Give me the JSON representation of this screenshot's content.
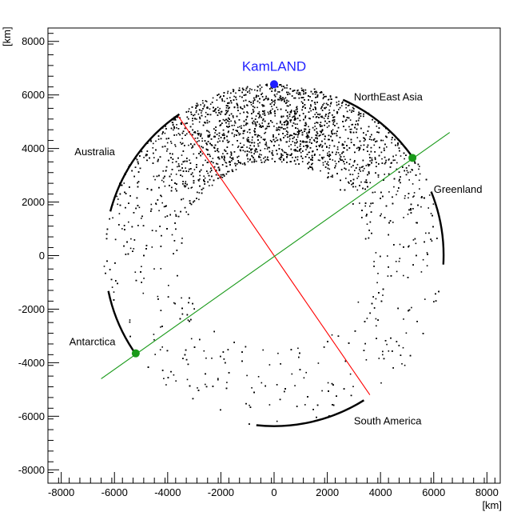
{
  "chart_data": {
    "type": "scatter",
    "title": "",
    "xlabel": "[km]",
    "ylabel": "[km]",
    "xlim": [
      -8500,
      8500
    ],
    "ylim": [
      -8500,
      8500
    ],
    "xticks": [
      -8000,
      -6000,
      -4000,
      -2000,
      0,
      2000,
      4000,
      6000,
      8000
    ],
    "yticks": [
      -8000,
      -6000,
      -4000,
      -2000,
      0,
      2000,
      4000,
      6000,
      8000
    ],
    "xtick_labels": [
      "-8000",
      "-6000",
      "-4000",
      "-2000",
      "0",
      "2000",
      "4000",
      "6000",
      "8000"
    ],
    "ytick_labels": [
      "-8000",
      "-6000",
      "-4000",
      "-2000",
      "0",
      "2000",
      "4000",
      "6000",
      "8000"
    ],
    "grid": false,
    "ring": {
      "inner_radius": 3500,
      "outer_radius": 6400
    },
    "coastlines": [
      {
        "radius": 6370,
        "from_deg": 36,
        "to_deg": 66
      },
      {
        "radius": 6370,
        "from_deg": -3,
        "to_deg": 22
      },
      {
        "radius": 6370,
        "from_deg": 124,
        "to_deg": 165
      },
      {
        "radius": 6370,
        "from_deg": 192,
        "to_deg": 216
      },
      {
        "radius": 6370,
        "from_deg": 264,
        "to_deg": 302
      }
    ],
    "points": [
      {
        "label": "KamLAND",
        "x": 0,
        "y": 6400,
        "color": "#1f1fff"
      },
      {
        "label": "",
        "x": 5200,
        "y": 3650,
        "color": "#1a9a1a"
      },
      {
        "label": "",
        "x": -5200,
        "y": -3650,
        "color": "#1a9a1a"
      }
    ],
    "lines": [
      {
        "from": [
          -3600,
          5200
        ],
        "to": [
          3600,
          -5200
        ],
        "color": "#ff0000"
      },
      {
        "from": [
          -6500,
          -4600
        ],
        "to": [
          6600,
          4600
        ],
        "color": "#1a9a1a"
      }
    ],
    "annotations": [
      {
        "text": "KamLAND",
        "x": 0,
        "y": 6900,
        "color": "#1f1fff",
        "size": 17,
        "anchor": "middle"
      },
      {
        "text": "NorthEast Asia",
        "x": 3000,
        "y": 5800,
        "color": "#000000",
        "size": 13,
        "anchor": "start"
      },
      {
        "text": "Australia",
        "x": -7500,
        "y": 3750,
        "color": "#000000",
        "size": 13,
        "anchor": "start"
      },
      {
        "text": "Greenland",
        "x": 6000,
        "y": 2350,
        "color": "#000000",
        "size": 13,
        "anchor": "start"
      },
      {
        "text": "Antarctica",
        "x": -7700,
        "y": -3350,
        "color": "#000000",
        "size": 13,
        "anchor": "start"
      },
      {
        "text": "South America",
        "x": 3000,
        "y": -6300,
        "color": "#000000",
        "size": 13,
        "anchor": "start"
      }
    ],
    "colors": {
      "scatter": "#000000",
      "frame": "#000000"
    }
  }
}
